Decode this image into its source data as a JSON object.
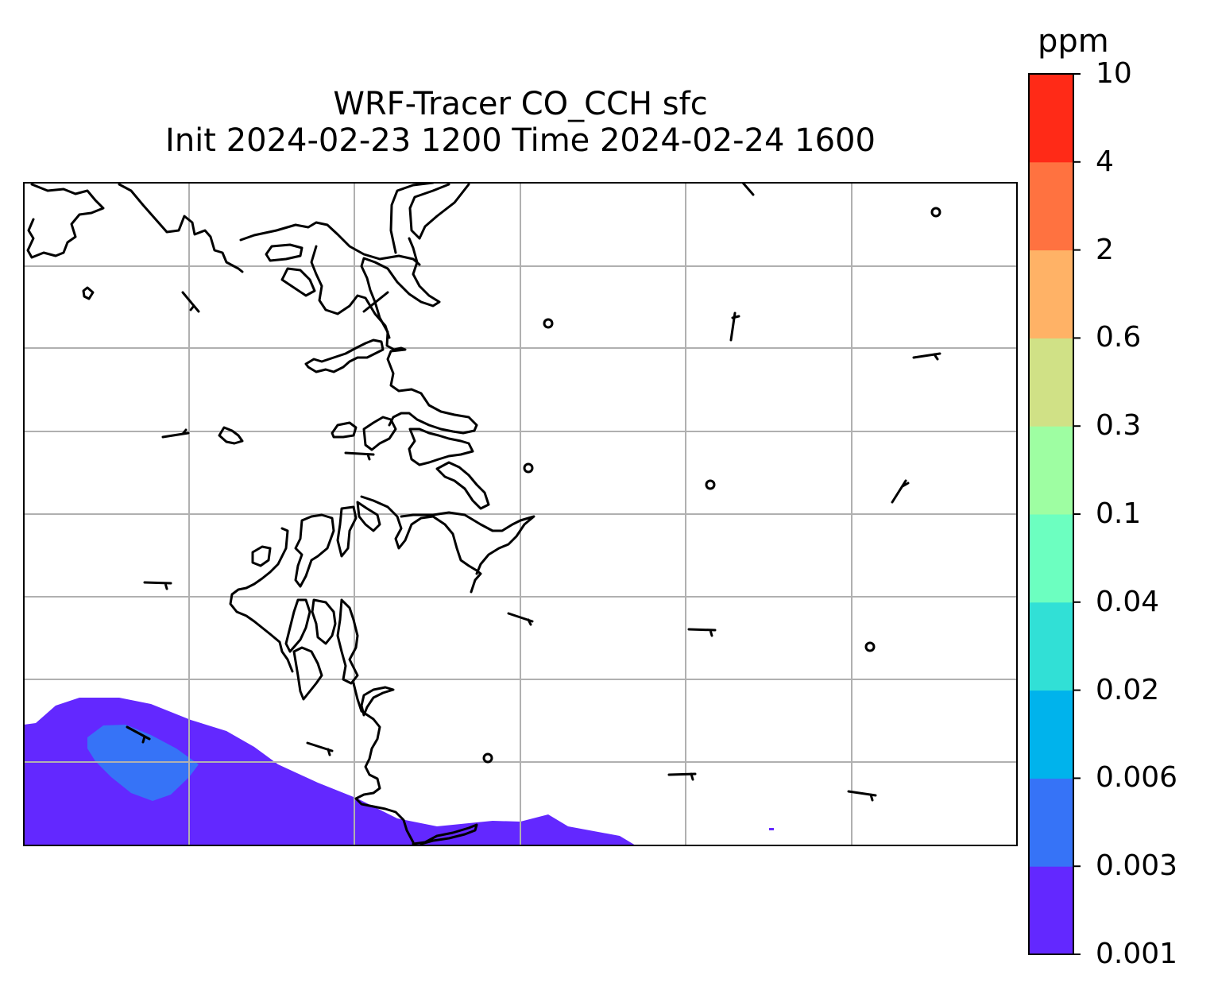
{
  "title": {
    "line1": "WRF-Tracer CO_CCH sfc",
    "line2": "Init 2024-02-23 1200 Time 2024-02-24 1600"
  },
  "colorbar": {
    "units": "ppm",
    "levels": [
      "0.001",
      "0.003",
      "0.006",
      "0.02",
      "0.04",
      "0.1",
      "0.3",
      "0.6",
      "2",
      "4",
      "10"
    ],
    "colors": [
      "#6328ff",
      "#3673f7",
      "#00b3ec",
      "#31e0d6",
      "#6cffc0",
      "#9efea2",
      "#d0e186",
      "#ffb266",
      "#ff7240",
      "#ff2a17"
    ]
  },
  "map": {
    "gridlines": true,
    "coastline_color": "#000000",
    "grid_color": "#b0b0b0"
  }
}
